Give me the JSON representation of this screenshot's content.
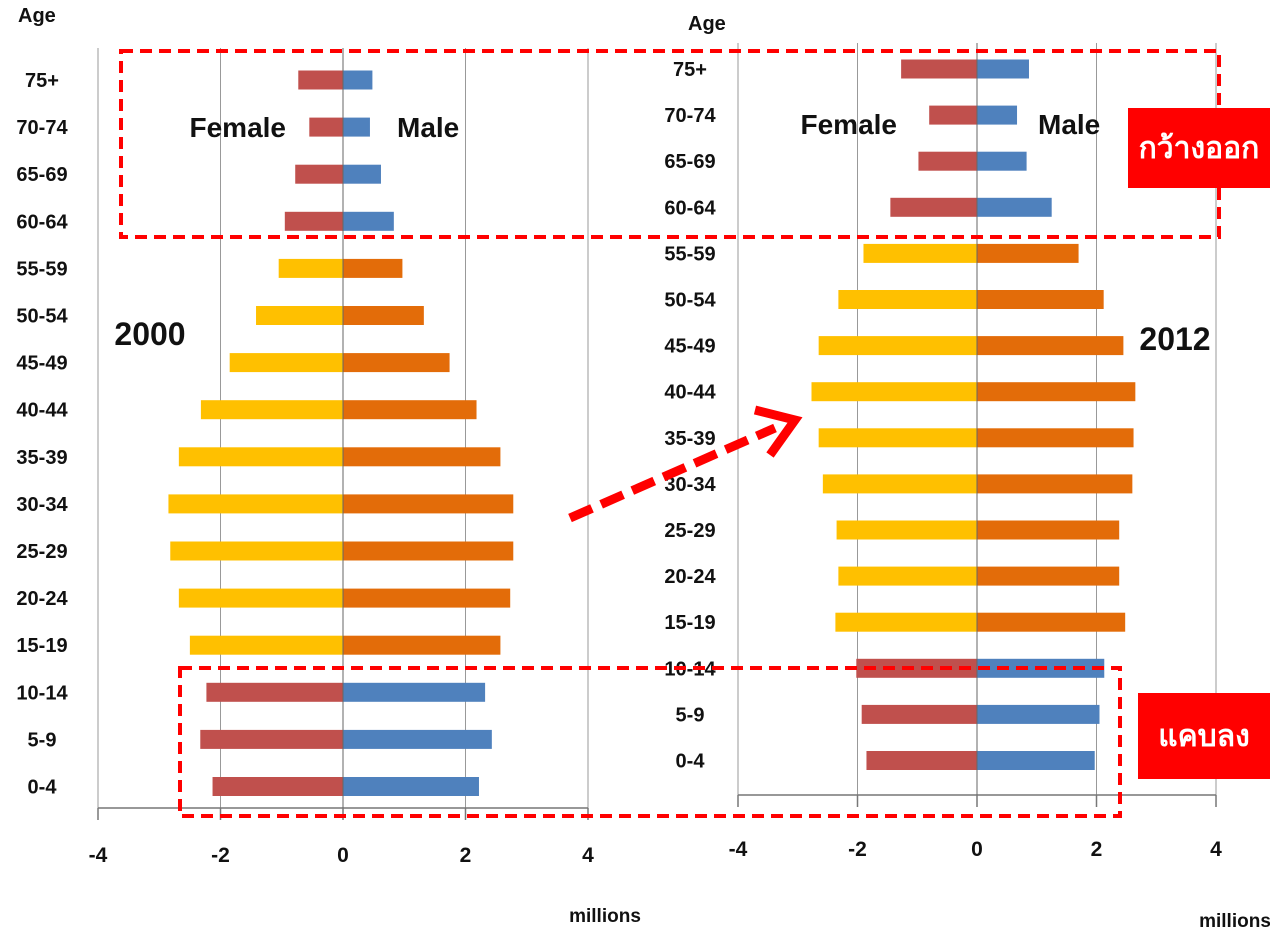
{
  "chart_data": [
    {
      "type": "bar",
      "orientation": "horizontal",
      "title": "2000",
      "ylabel": "Age",
      "xlabel": "millions",
      "xlim": [
        -4,
        4
      ],
      "x_ticks": [
        "-4",
        "-2",
        "0",
        "2",
        "4"
      ],
      "categories": [
        "75+",
        "70-74",
        "65-69",
        "60-64",
        "55-59",
        "50-54",
        "45-49",
        "40-44",
        "35-39",
        "30-34",
        "25-29",
        "20-24",
        "15-19",
        "10-14",
        "5-9",
        "0-4"
      ],
      "series": [
        {
          "name": "Female",
          "values": [
            -0.73,
            -0.55,
            -0.78,
            -0.95,
            -1.05,
            -1.42,
            -1.85,
            -2.32,
            -2.68,
            -2.85,
            -2.82,
            -2.68,
            -2.5,
            -2.23,
            -2.33,
            -2.13
          ]
        },
        {
          "name": "Male",
          "values": [
            0.48,
            0.44,
            0.62,
            0.83,
            0.97,
            1.32,
            1.74,
            2.18,
            2.57,
            2.78,
            2.78,
            2.73,
            2.57,
            2.32,
            2.43,
            2.22
          ]
        }
      ],
      "colors": {
        "female_old": "#c0504d",
        "male_old": "#4f81bd",
        "female_working": "#ffc000",
        "male_working": "#e36c09",
        "female_young": "#c0504d",
        "male_young": "#4f81bd"
      },
      "legend": {
        "female": "Female",
        "male": "Male"
      }
    },
    {
      "type": "bar",
      "orientation": "horizontal",
      "title": "2012",
      "ylabel": "Age",
      "xlabel": "millions",
      "xlim": [
        -4,
        4
      ],
      "x_ticks": [
        "-4",
        "-2",
        "0",
        "2",
        "4"
      ],
      "categories": [
        "75+",
        "70-74",
        "65-69",
        "60-64",
        "55-59",
        "50-54",
        "45-49",
        "40-44",
        "35-39",
        "30-34",
        "25-29",
        "20-24",
        "15-19",
        "10-14",
        "5-9",
        "0-4"
      ],
      "series": [
        {
          "name": "Female",
          "values": [
            -1.27,
            -0.8,
            -0.98,
            -1.45,
            -1.9,
            -2.32,
            -2.65,
            -2.77,
            -2.65,
            -2.58,
            -2.35,
            -2.32,
            -2.37,
            -2.02,
            -1.93,
            -1.85
          ]
        },
        {
          "name": "Male",
          "values": [
            0.87,
            0.67,
            0.83,
            1.25,
            1.7,
            2.12,
            2.45,
            2.65,
            2.62,
            2.6,
            2.38,
            2.38,
            2.48,
            2.13,
            2.05,
            1.97
          ]
        }
      ],
      "colors": {
        "female_old": "#c0504d",
        "male_old": "#4f81bd",
        "female_working": "#ffc000",
        "male_working": "#e36c09",
        "female_young": "#c0504d",
        "male_young": "#4f81bd"
      },
      "legend": {
        "female": "Female",
        "male": "Male"
      }
    }
  ],
  "annotations": {
    "widen_label": "กว้างออก",
    "narrow_label": "แคบลง",
    "highlight_color": "#ff0000"
  }
}
